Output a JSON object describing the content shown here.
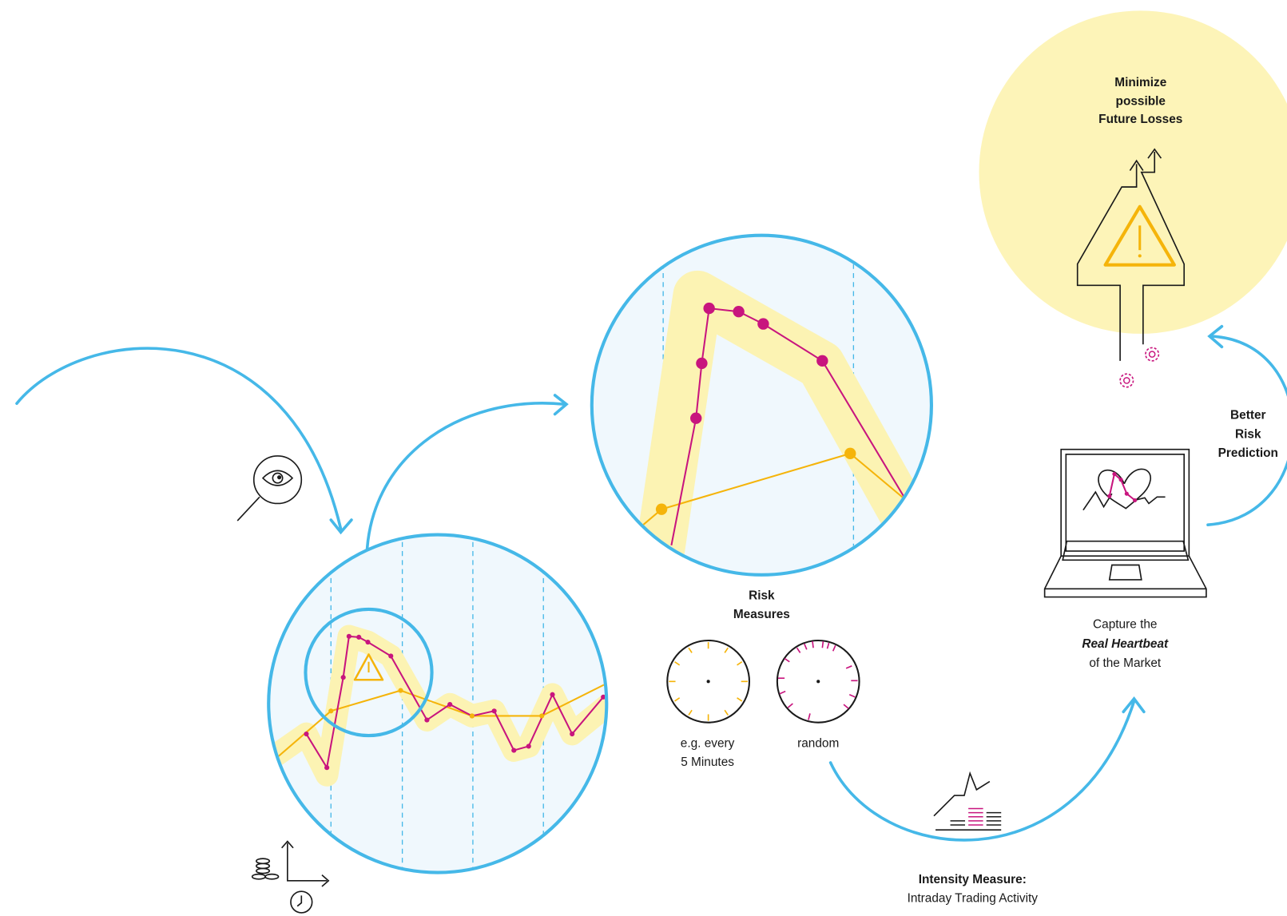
{
  "goal": {
    "lines": [
      "Minimize",
      "possible",
      "Future Losses"
    ]
  },
  "feedback": {
    "lines": [
      "Better",
      "Risk",
      "Prediction"
    ]
  },
  "capture": {
    "lines": [
      "Capture the",
      "Real Heartbeat",
      "of the Market"
    ]
  },
  "risk_measures": {
    "lines": [
      "Risk",
      "Measures"
    ]
  },
  "sampling": {
    "regular": [
      "e.g. every",
      "5 Minutes"
    ],
    "random": "random"
  },
  "intensity": {
    "title": "Intensity Measure:",
    "subtitle": "Intraday Trading Activity"
  }
}
